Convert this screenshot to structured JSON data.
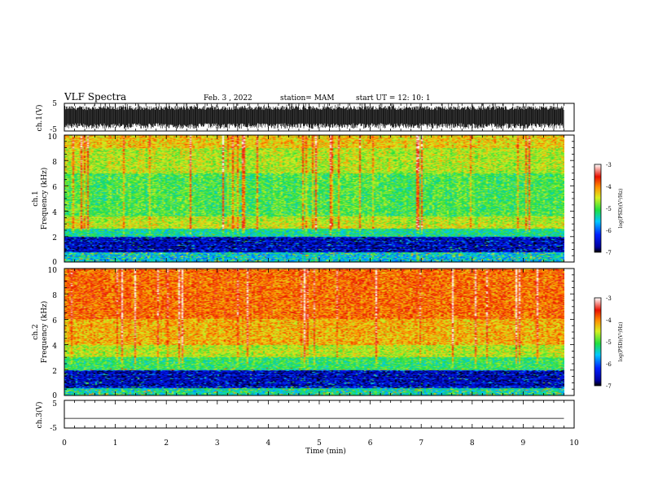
{
  "header": {
    "title": "VLF Spectra",
    "date": "Feb. 3  , 2022",
    "station": "station= MAM",
    "start_ut": "start  UT  =   12: 10: 1"
  },
  "chart_data": [
    {
      "type": "line",
      "name": "channel-1-waveform",
      "ylabel": "ch.1(V)",
      "ylim": [
        -5,
        5
      ],
      "yticks": [
        "5",
        "-5"
      ],
      "xlim": [
        0,
        10
      ],
      "trace": "dense-noise"
    },
    {
      "type": "heatmap",
      "name": "channel-1-spectrogram",
      "ylabel_line1": "ch.1",
      "ylabel_line2": "Frequency  (kHz)",
      "ylim": [
        0,
        10
      ],
      "yticks": [
        "0",
        "2",
        "4",
        "6",
        "8",
        "10"
      ],
      "xlim": [
        0,
        9.8
      ],
      "colorbar": {
        "label": "log(PSD)(V²/Hz)",
        "range": [
          -7,
          -3
        ],
        "ticks": [
          "-3",
          "-4",
          "-5",
          "-6",
          "-7"
        ]
      },
      "bands_log_psd": [
        {
          "freq_khz": [
            9,
            10
          ],
          "level": -4.3
        },
        {
          "freq_khz": [
            7,
            9
          ],
          "level": -4.6
        },
        {
          "freq_khz": [
            3.6,
            7
          ],
          "level": -5.0
        },
        {
          "freq_khz": [
            3,
            3.6
          ],
          "level": -4.6
        },
        {
          "freq_khz": [
            2.6,
            3
          ],
          "level": -4.5
        },
        {
          "freq_khz": [
            2,
            2.6
          ],
          "level": -5.3
        },
        {
          "freq_khz": [
            0.8,
            2
          ],
          "level": -6.6
        },
        {
          "freq_khz": [
            0,
            0.8
          ],
          "level": -5.6
        }
      ]
    },
    {
      "type": "heatmap",
      "name": "channel-2-spectrogram",
      "ylabel_line1": "ch.2",
      "ylabel_line2": "Frequency  (kHz)",
      "ylim": [
        0,
        10
      ],
      "yticks": [
        "0",
        "2",
        "4",
        "6",
        "8",
        "10"
      ],
      "xlim": [
        0,
        9.8
      ],
      "colorbar": {
        "label": "log(PSD)(V²/Hz)",
        "range": [
          -7,
          -3
        ],
        "ticks": [
          "-3",
          "-4",
          "-5",
          "-6",
          "-7"
        ]
      },
      "bands_log_psd": [
        {
          "freq_khz": [
            6,
            10
          ],
          "level": -3.9
        },
        {
          "freq_khz": [
            4,
            6
          ],
          "level": -4.2
        },
        {
          "freq_khz": [
            3,
            4
          ],
          "level": -4.6
        },
        {
          "freq_khz": [
            2,
            3
          ],
          "level": -5.1
        },
        {
          "freq_khz": [
            0.6,
            2
          ],
          "level": -6.6
        },
        {
          "freq_khz": [
            0,
            0.6
          ],
          "level": -5.4
        }
      ]
    },
    {
      "type": "line",
      "name": "channel-3-waveform",
      "ylabel": "ch.3(V)",
      "ylim": [
        -5,
        5
      ],
      "yticks": [
        "5",
        "-5"
      ],
      "xlim": [
        0,
        10
      ],
      "trace": "flat",
      "value": -1.5
    }
  ],
  "xaxis": {
    "label": "Time  (min)",
    "ticks": [
      "0",
      "1",
      "2",
      "3",
      "4",
      "5",
      "6",
      "7",
      "8",
      "9",
      "10"
    ],
    "range": [
      0,
      10
    ]
  }
}
